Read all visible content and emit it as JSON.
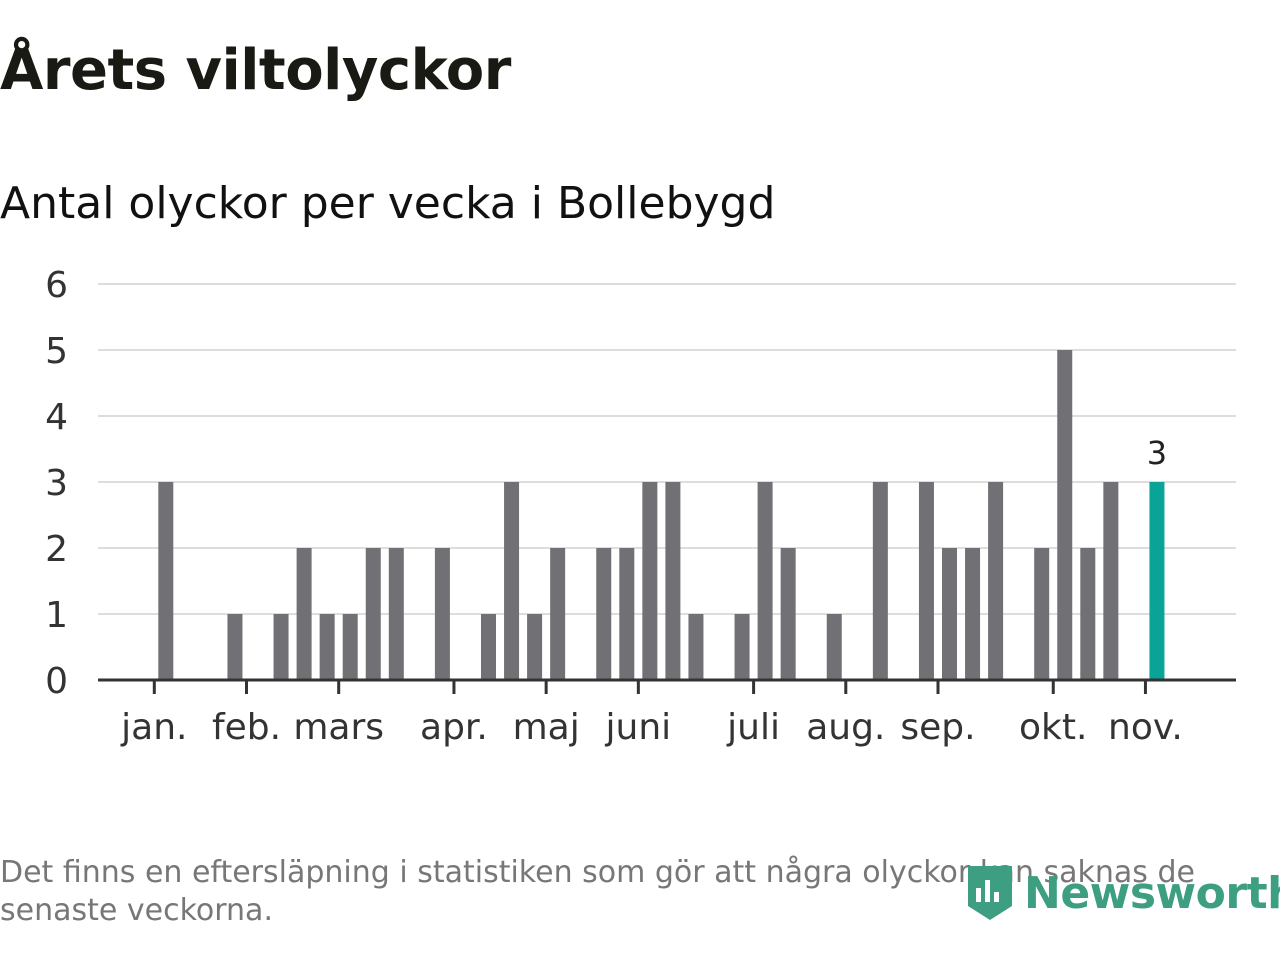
{
  "header": {
    "title": "Årets viltolyckor",
    "subtitle": "Antal olyckor per vecka i Bollebygd"
  },
  "chart_data": {
    "type": "bar",
    "title": "Årets viltolyckor",
    "subtitle": "Antal olyckor per vecka i Bollebygd",
    "xlabel": "",
    "ylabel": "",
    "ylim": [
      0,
      6
    ],
    "yticks": [
      0,
      1,
      2,
      3,
      4,
      5,
      6
    ],
    "grid": true,
    "weeks": [
      1,
      2,
      3,
      4,
      5,
      6,
      7,
      8,
      9,
      10,
      11,
      12,
      13,
      14,
      15,
      16,
      17,
      18,
      19,
      20,
      21,
      22,
      23,
      24,
      25,
      26,
      27,
      28,
      29,
      30,
      31,
      32,
      33,
      34,
      35,
      36,
      37,
      38,
      39,
      40,
      41,
      42,
      43,
      44,
      45
    ],
    "values": [
      0,
      0,
      3,
      0,
      0,
      1,
      0,
      1,
      2,
      1,
      1,
      2,
      2,
      0,
      2,
      0,
      1,
      3,
      1,
      2,
      0,
      2,
      2,
      3,
      3,
      1,
      0,
      1,
      3,
      2,
      0,
      1,
      0,
      3,
      0,
      3,
      2,
      2,
      3,
      0,
      2,
      5,
      2,
      3,
      0
    ],
    "highlight": {
      "week": 46,
      "value": 3,
      "label": "3"
    },
    "month_labels": [
      {
        "label": "jan.",
        "week": 3
      },
      {
        "label": "feb.",
        "week": 7
      },
      {
        "label": "mars",
        "week": 11
      },
      {
        "label": "apr.",
        "week": 16
      },
      {
        "label": "maj",
        "week": 20
      },
      {
        "label": "juni",
        "week": 24
      },
      {
        "label": "juli",
        "week": 29
      },
      {
        "label": "aug.",
        "week": 33
      },
      {
        "label": "sep.",
        "week": 37
      },
      {
        "label": "okt.",
        "week": 42
      },
      {
        "label": "nov.",
        "week": 46
      }
    ],
    "colors": {
      "bar": "#707075",
      "highlight": "#0aa398",
      "grid": "#dddddd",
      "axis": "#333333",
      "tick_text": "#333333"
    }
  },
  "footer": {
    "note": "Det finns en eftersläpning i statistiken som gör att några olyckor kan saknas de senaste veckorna.",
    "brand": "Newsworthy",
    "brand_icon": "newsworthy-logo-icon",
    "brand_color": "#3d9e82"
  }
}
